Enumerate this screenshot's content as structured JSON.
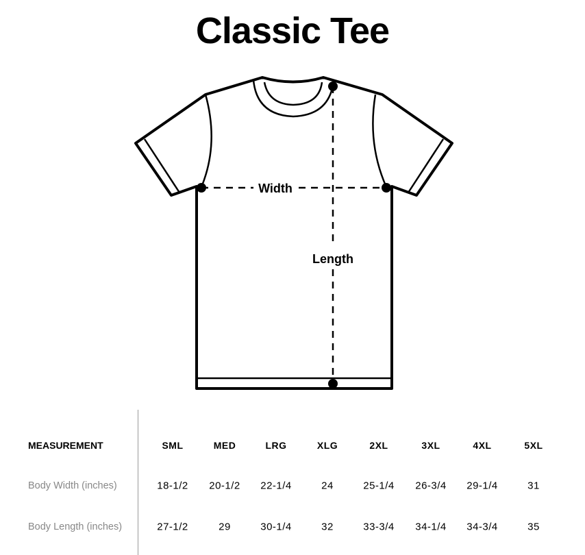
{
  "title": "Classic Tee",
  "diagram": {
    "width_label": "Width",
    "length_label": "Length"
  },
  "table": {
    "header_label": "MEASUREMENT",
    "sizes": [
      "SML",
      "MED",
      "LRG",
      "XLG",
      "2XL",
      "3XL",
      "4XL",
      "5XL"
    ],
    "rows": [
      {
        "label": "Body Width (inches)",
        "values": [
          "18-1/2",
          "20-1/2",
          "22-1/4",
          "24",
          "25-1/4",
          "26-3/4",
          "29-1/4",
          "31"
        ]
      },
      {
        "label": "Body Length (inches)",
        "values": [
          "27-1/2",
          "29",
          "30-1/4",
          "32",
          "33-3/4",
          "34-1/4",
          "34-3/4",
          "35"
        ]
      }
    ]
  }
}
